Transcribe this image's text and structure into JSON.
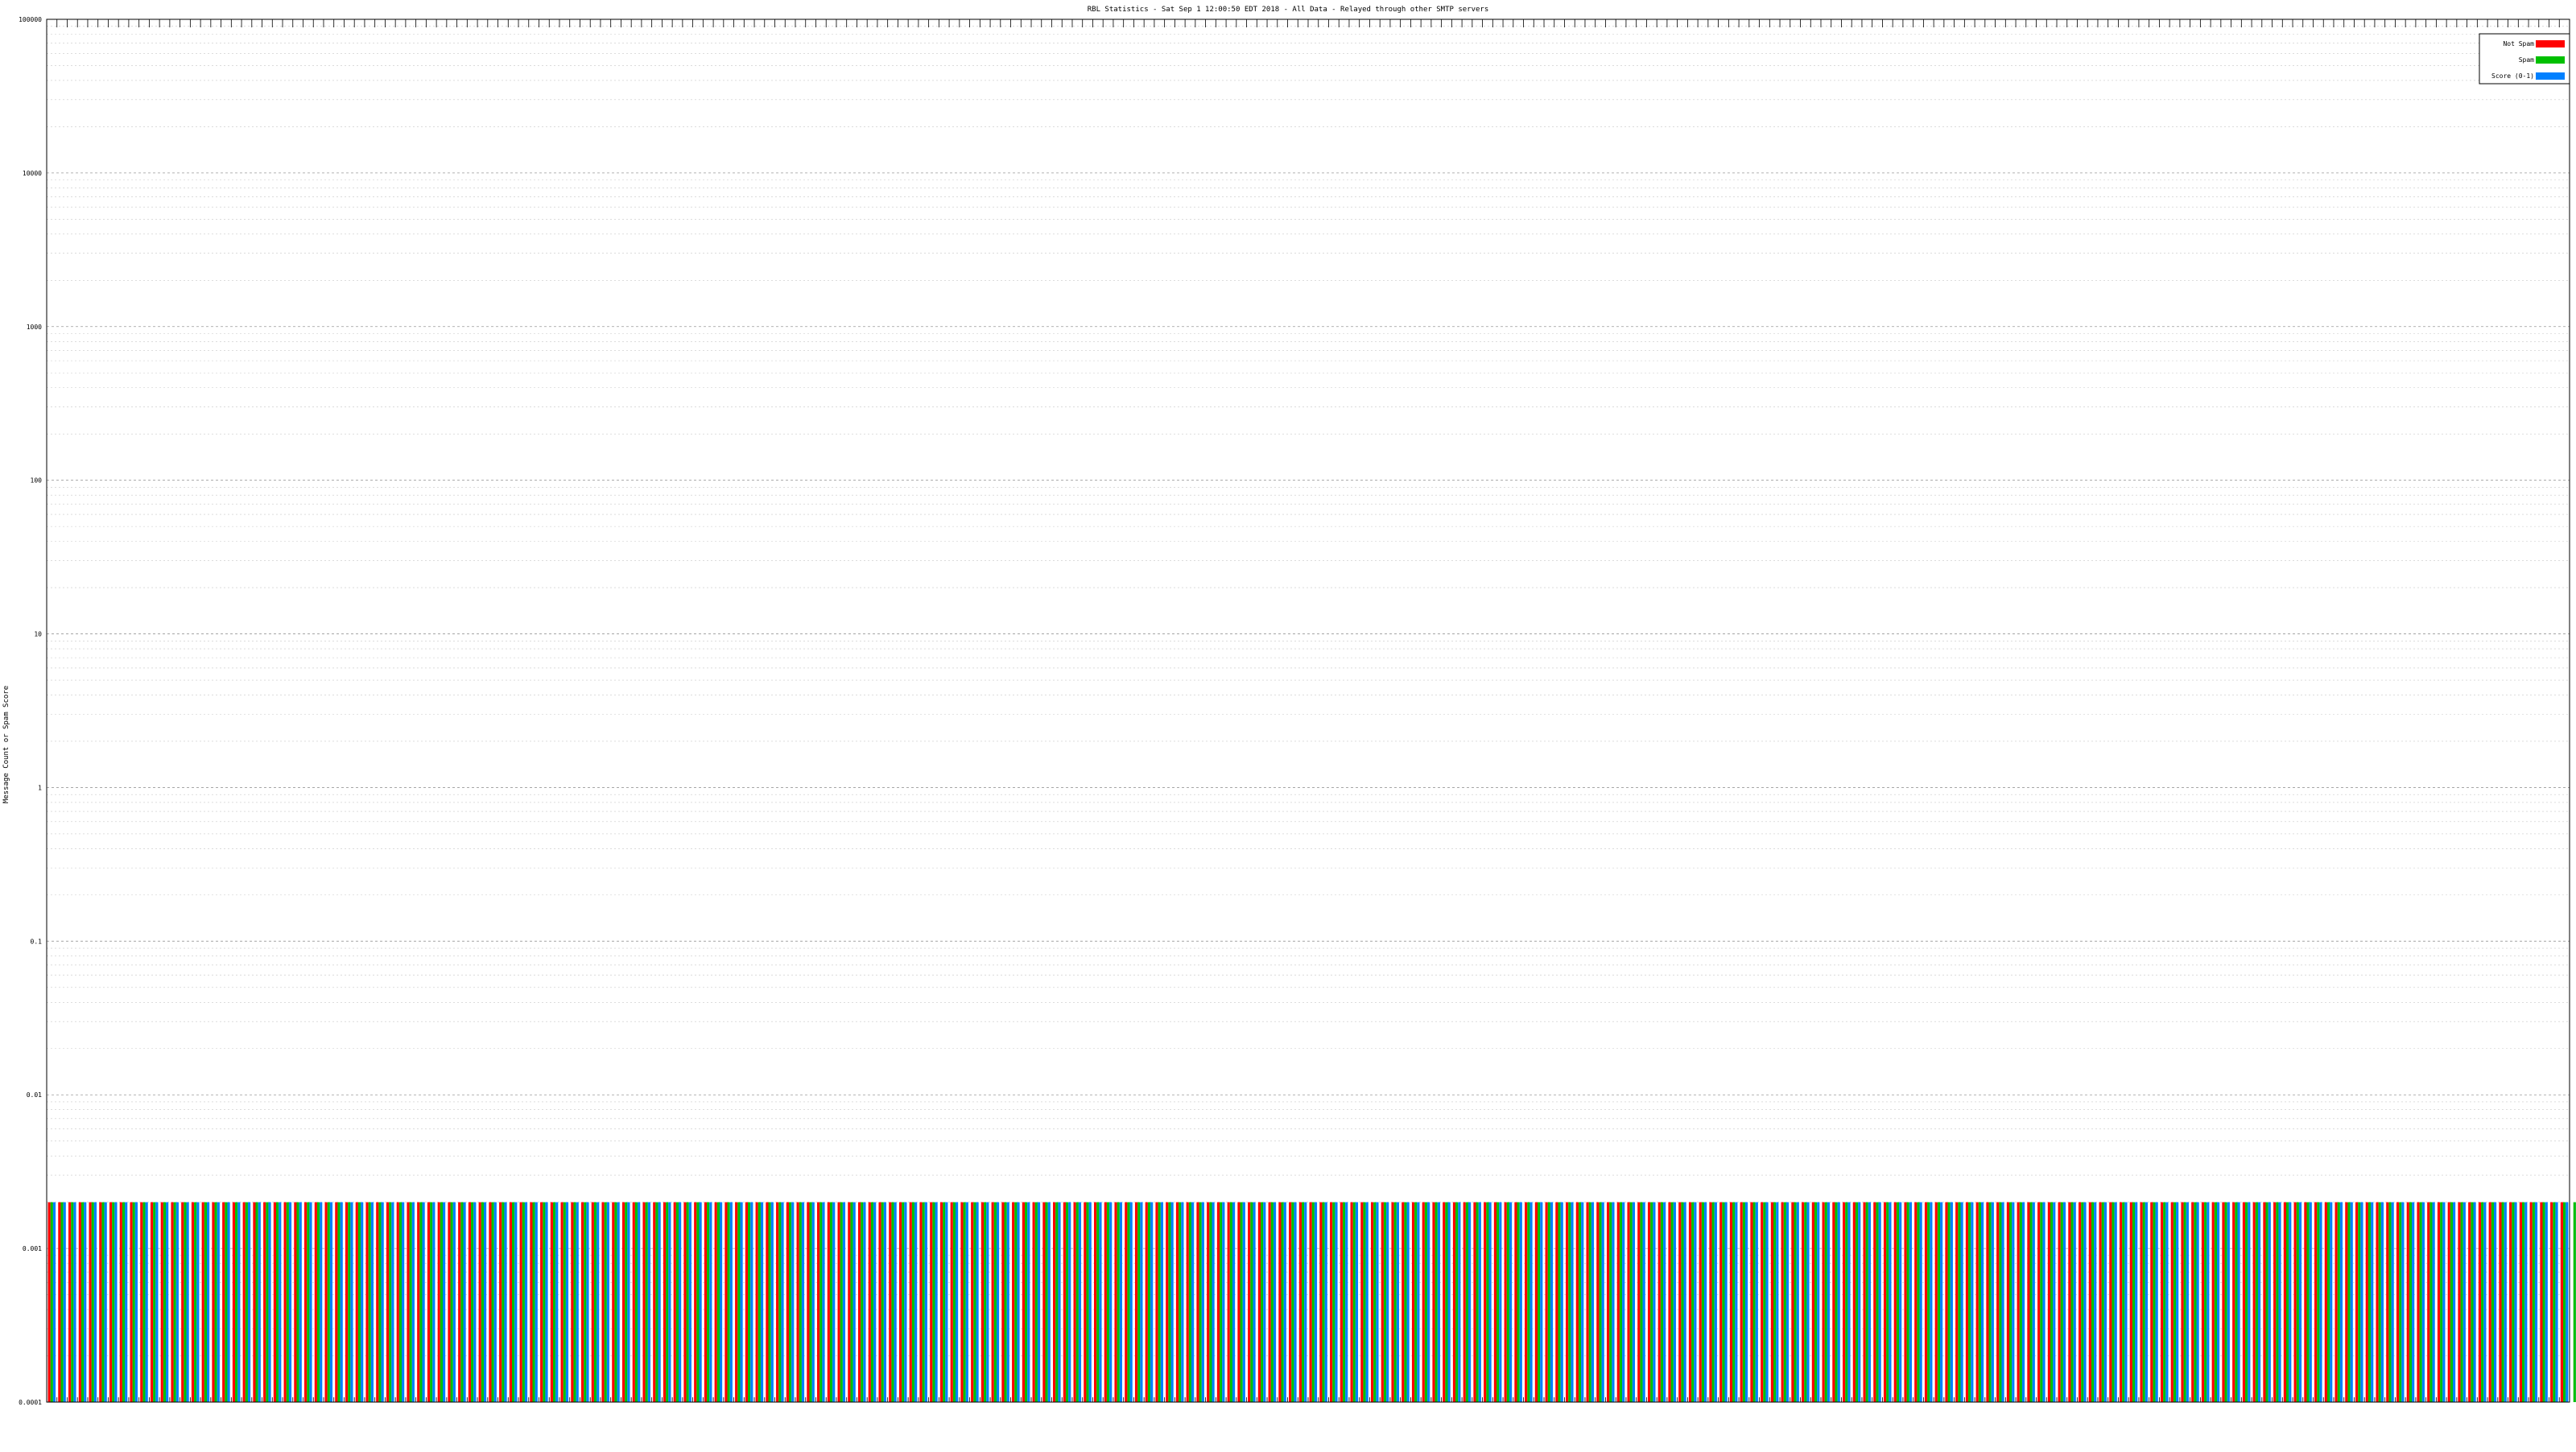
{
  "chart_data": {
    "type": "bar",
    "title": "RBL Statistics - Sat Sep  1 12:00:50 EDT 2018 - All Data - Relayed through other SMTP servers",
    "ylabel": "Message Count or Spam Score",
    "xlabel": "",
    "yscale": "log",
    "ylim": [
      0.0001,
      100000
    ],
    "y_ticks": [
      {
        "value": 0.0001,
        "label": "0.0001"
      },
      {
        "value": 0.001,
        "label": "0.001"
      },
      {
        "value": 0.01,
        "label": "0.01"
      },
      {
        "value": 0.1,
        "label": "0.1"
      },
      {
        "value": 1,
        "label": "1"
      },
      {
        "value": 10,
        "label": "10"
      },
      {
        "value": 100,
        "label": "100"
      },
      {
        "value": 1000,
        "label": "1000"
      },
      {
        "value": 10000,
        "label": "10000"
      },
      {
        "value": 100000,
        "label": "100000"
      }
    ],
    "grid": true,
    "legend_position": "top-right",
    "colors": {
      "not_spam": "#ff0000",
      "spam": "#00c000",
      "score": "#0080ff",
      "axis": "#000000",
      "grid": "#c8c8c8"
    },
    "series": [
      {
        "name": "Not Spam",
        "color": "#ff0000",
        "values": [
          0.002,
          0.002,
          0.002,
          0.002,
          0.002,
          0.002,
          0.002,
          0.002,
          0.002,
          0.002,
          0.002,
          0.002,
          0.002,
          0.002,
          0.002,
          0.002,
          0.002,
          0.002,
          0.002,
          0.002,
          0.002,
          0.002,
          0.002,
          0.002,
          0.002,
          0.002,
          0.002,
          0.002,
          0.002,
          0.002,
          0.002,
          0.002,
          0.002,
          0.002,
          0.002,
          0.002,
          0.002,
          0.002,
          0.002,
          0.002,
          0.002,
          0.002,
          0.002,
          0.002,
          0.002,
          0.002,
          0.002,
          0.002,
          0.002,
          0.002,
          0.002,
          0.002,
          0.002,
          0.002,
          0.002,
          0.002,
          0.002,
          0.002,
          0.002,
          0.002,
          0.002,
          0.002,
          0.002,
          0.002,
          0.002,
          0.002,
          0.002,
          0.002,
          0.002,
          0.002,
          0.002,
          0.002,
          0.002,
          0.002,
          0.002,
          0.002,
          0.002,
          0.002,
          0.002,
          0.002,
          0.002,
          0.002,
          0.002,
          0.002,
          0.002,
          0.002,
          0.002,
          0.002,
          0.002,
          0.002,
          0.002,
          0.002,
          0.002,
          0.002,
          0.002,
          0.002,
          0.002,
          0.002,
          0.002,
          0.002,
          0.002,
          0.002,
          0.002,
          0.002,
          0.002,
          0.002,
          0.002,
          0.002,
          0.002,
          0.002,
          0.002,
          0.002,
          0.002,
          0.002,
          0.002,
          0.002,
          0.002,
          0.002,
          0.002,
          0.002,
          0.002,
          0.002,
          0.002,
          0.002,
          0.002,
          0.002,
          0.002,
          0.002,
          0.002,
          0.002,
          0.002,
          0.002,
          0.002,
          0.002,
          0.002,
          0.002,
          0.002,
          0.002,
          0.002,
          0.002,
          0.002,
          0.002,
          0.002,
          0.002,
          0.002,
          0.002,
          0.002,
          0.002,
          0.002,
          0.002,
          0.002,
          0.002,
          0.002,
          0.002,
          0.002,
          0.002,
          0.002,
          0.002,
          0.002,
          0.002,
          0.002,
          0.002,
          0.002,
          0.002,
          0.002,
          0.002,
          0.002,
          0.002,
          0.002,
          0.002,
          0.002,
          0.002,
          0.002,
          0.002,
          0.002,
          0.002,
          0.002,
          0.002,
          0.002,
          0.002,
          0.002,
          0.002,
          0.002,
          0.002,
          0.002,
          0.002,
          0.002,
          0.002,
          0.002,
          0.002,
          0.002,
          0.002,
          0.002,
          0.002,
          0.002,
          0.002,
          0.002,
          0.002,
          0.002,
          0.002,
          0.002,
          0.002,
          0.002,
          0.002,
          0.002,
          0.002,
          0.002,
          0.002,
          0.002,
          0.002,
          0.002,
          0.002,
          0.002,
          0.002,
          0.002,
          0.002,
          0.002,
          0.002,
          0.002,
          0.002,
          0.002,
          0.002,
          0.002,
          0.002,
          0.002,
          0.002,
          0.002,
          0.002,
          0.002,
          0.002,
          0.002,
          0.002,
          0.002,
          0.002,
          0.002,
          0.002,
          0.002,
          0.002,
          0.002,
          0.002,
          0.002,
          0.002,
          0.002,
          0.002,
          0.002,
          0.002
        ]
      },
      {
        "name": "Spam",
        "color": "#00c000",
        "values": [
          0.002,
          0.002,
          0.002,
          0.002,
          0.002,
          0.002,
          0.002,
          0.002,
          0.002,
          0.002,
          0.002,
          0.002,
          0.002,
          0.002,
          0.002,
          0.002,
          0.002,
          0.002,
          0.002,
          0.002,
          0.002,
          0.002,
          0.002,
          0.002,
          0.002,
          0.002,
          0.002,
          0.002,
          0.002,
          0.002,
          0.002,
          0.002,
          0.002,
          0.002,
          0.002,
          0.002,
          0.002,
          0.002,
          0.002,
          0.002,
          0.002,
          0.002,
          0.002,
          0.002,
          0.002,
          0.002,
          0.002,
          0.002,
          0.002,
          0.002,
          0.002,
          0.002,
          0.002,
          0.002,
          0.002,
          0.002,
          0.002,
          0.002,
          0.002,
          0.002,
          0.002,
          0.002,
          0.002,
          0.002,
          0.002,
          0.002,
          0.002,
          0.002,
          0.002,
          0.002,
          0.002,
          0.002,
          0.002,
          0.002,
          0.002,
          0.002,
          0.002,
          0.002,
          0.002,
          0.002,
          0.002,
          0.002,
          0.002,
          0.002,
          0.002,
          0.002,
          0.002,
          0.002,
          0.002,
          0.002,
          0.002,
          0.002,
          0.002,
          0.002,
          0.002,
          0.002,
          0.002,
          0.002,
          0.002,
          0.002,
          0.002,
          0.002,
          0.002,
          0.002,
          0.002,
          0.002,
          0.002,
          0.002,
          0.002,
          0.002,
          0.002,
          0.002,
          0.002,
          0.002,
          0.002,
          0.002,
          0.002,
          0.002,
          0.002,
          0.002,
          0.002,
          0.002,
          0.002,
          0.002,
          0.002,
          0.002,
          0.002,
          0.002,
          0.002,
          0.002,
          0.002,
          0.002,
          0.002,
          0.002,
          0.002,
          0.002,
          0.002,
          0.002,
          0.002,
          0.002,
          0.002,
          0.002,
          0.002,
          0.002,
          0.002,
          0.002,
          0.002,
          0.002,
          0.002,
          0.002,
          0.002,
          0.002,
          0.002,
          0.002,
          0.002,
          0.002,
          0.002,
          0.002,
          0.002,
          0.002,
          0.002,
          0.002,
          0.002,
          0.002,
          0.002,
          0.002,
          0.002,
          0.002,
          0.002,
          0.002,
          0.002,
          0.002,
          0.002,
          0.002,
          0.002,
          0.002,
          0.002,
          0.002,
          0.002,
          0.002,
          0.002,
          0.002,
          0.002,
          0.002,
          0.002,
          0.002,
          0.002,
          0.002,
          0.002,
          0.002,
          0.002,
          0.002,
          0.002,
          0.002,
          0.002,
          0.002,
          0.002,
          0.002,
          0.002,
          0.002,
          0.002,
          0.002,
          0.002,
          0.002,
          0.002,
          0.002,
          0.002,
          0.002,
          0.002,
          0.002,
          0.002,
          0.002,
          0.002,
          0.002,
          0.002,
          0.002,
          0.002,
          0.002,
          0.002,
          0.002,
          0.002,
          0.002,
          0.002,
          0.002,
          0.002,
          0.002,
          0.002,
          0.002,
          0.002,
          0.002,
          0.002,
          0.002,
          0.002,
          0.002,
          0.002,
          0.002,
          0.002,
          0.002,
          0.002,
          0.002,
          0.002,
          0.002,
          0.002,
          0.002,
          0.002,
          0.002,
          0.002,
          0.002,
          0.002,
          0.002,
          0.002,
          0.002
        ]
      },
      {
        "name": "Score (0-1)",
        "color": "#0080ff",
        "values": [
          0.002,
          0.002,
          0.002,
          0.002,
          0.002,
          0.002,
          0.002,
          0.002,
          0.002,
          0.002,
          0.002,
          0.002,
          0.002,
          0.002,
          0.002,
          0.002,
          0.002,
          0.002,
          0.002,
          0.002,
          0.002,
          0.002,
          0.002,
          0.002,
          0.002,
          0.002,
          0.002,
          0.002,
          0.002,
          0.002,
          0.002,
          0.002,
          0.002,
          0.002,
          0.002,
          0.002,
          0.002,
          0.002,
          0.002,
          0.002,
          0.002,
          0.002,
          0.002,
          0.002,
          0.002,
          0.002,
          0.002,
          0.002,
          0.002,
          0.002,
          0.002,
          0.002,
          0.002,
          0.002,
          0.002,
          0.002,
          0.002,
          0.002,
          0.002,
          0.002,
          0.002,
          0.002,
          0.002,
          0.002,
          0.002,
          0.002,
          0.002,
          0.002,
          0.002,
          0.002,
          0.002,
          0.002,
          0.002,
          0.002,
          0.002,
          0.002,
          0.002,
          0.002,
          0.002,
          0.002,
          0.002,
          0.002,
          0.002,
          0.002,
          0.002,
          0.002,
          0.002,
          0.002,
          0.002,
          0.002,
          0.002,
          0.002,
          0.002,
          0.002,
          0.002,
          0.002,
          0.002,
          0.002,
          0.002,
          0.002,
          0.002,
          0.002,
          0.002,
          0.002,
          0.002,
          0.002,
          0.002,
          0.002,
          0.002,
          0.002,
          0.002,
          0.002,
          0.002,
          0.002,
          0.002,
          0.002,
          0.002,
          0.002,
          0.002,
          0.002,
          0.002,
          0.002,
          0.002,
          0.002,
          0.002,
          0.002,
          0.002,
          0.002,
          0.002,
          0.002,
          0.002,
          0.002,
          0.002,
          0.002,
          0.002,
          0.002,
          0.002,
          0.002,
          0.002,
          0.002,
          0.002,
          0.002,
          0.002,
          0.002,
          0.002,
          0.002,
          0.002,
          0.002,
          0.002,
          0.002,
          0.002,
          0.002,
          0.002,
          0.002,
          0.002,
          0.002,
          0.002,
          0.002,
          0.002,
          0.002,
          0.002,
          0.002,
          0.002,
          0.002,
          0.002,
          0.002,
          0.002,
          0.002,
          0.002,
          0.002,
          0.002,
          0.002,
          0.002,
          0.002,
          0.002,
          0.002,
          0.002,
          0.002,
          0.002,
          0.002,
          0.002,
          0.002,
          0.002,
          0.002,
          0.002,
          0.002,
          0.002,
          0.002,
          0.002,
          0.002,
          0.002,
          0.002,
          0.002,
          0.002,
          0.002,
          0.002,
          0.002,
          0.002,
          0.002,
          0.002,
          0.002,
          0.002,
          0.002,
          0.002,
          0.002,
          0.002,
          0.002,
          0.002,
          0.002,
          0.002,
          0.002,
          0.002,
          0.002,
          0.002,
          0.002,
          0.002,
          0.002,
          0.002,
          0.002,
          0.002,
          0.002,
          0.002,
          0.002,
          0.002,
          0.002,
          0.002,
          0.002,
          0.002,
          0.002,
          0.002,
          0.002,
          0.002,
          0.002,
          0.002,
          0.002,
          0.002,
          0.002,
          0.002,
          0.002,
          0.002,
          0.002,
          0.002,
          0.002,
          0.002,
          0.002,
          0.002,
          0.002,
          0.002,
          0.002,
          0.002,
          0.002
        ]
      }
    ]
  }
}
